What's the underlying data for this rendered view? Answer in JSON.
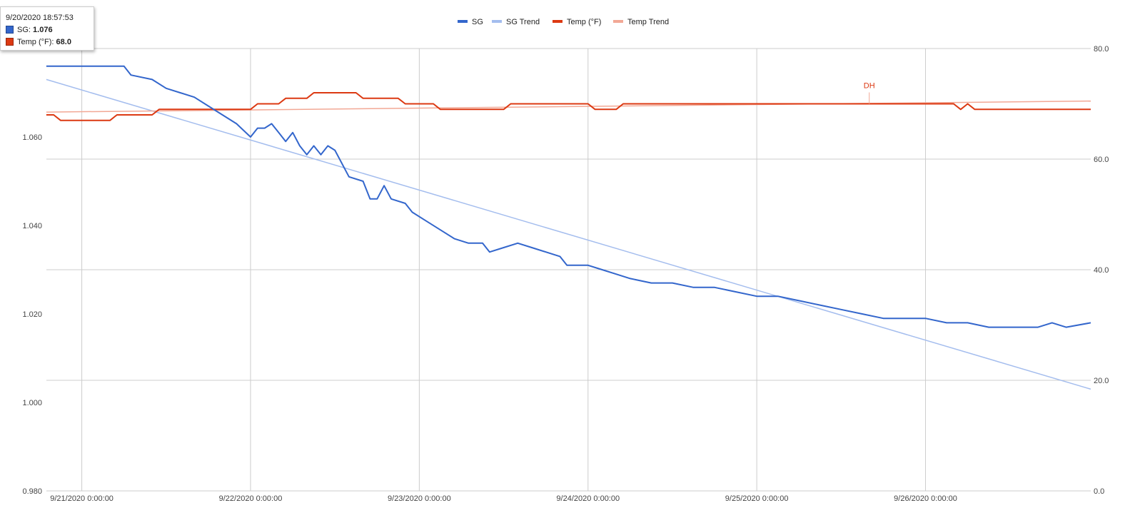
{
  "chart_data": {
    "type": "line",
    "legend": {
      "position": "top",
      "entries": [
        "SG",
        "SG Trend",
        "Temp (°F)",
        "Temp Trend"
      ]
    },
    "colors": {
      "SG": "#3366cc",
      "SG Trend": "#a4bdee",
      "Temp (°F)": "#dc3912",
      "Temp Trend": "#f2a895",
      "grid": "#cccccc"
    },
    "x_axis": {
      "type": "datetime",
      "range": [
        "2020-09-20T18:57:53",
        "2020-09-26T23:30:00"
      ],
      "ticks": [
        {
          "value": "2020-09-21T00:00:00",
          "label": "9/21/2020 0:00:00"
        },
        {
          "value": "2020-09-22T00:00:00",
          "label": "9/22/2020 0:00:00"
        },
        {
          "value": "2020-09-23T00:00:00",
          "label": "9/23/2020 0:00:00"
        },
        {
          "value": "2020-09-24T00:00:00",
          "label": "9/24/2020 0:00:00"
        },
        {
          "value": "2020-09-25T00:00:00",
          "label": "9/25/2020 0:00:00"
        },
        {
          "value": "2020-09-26T00:00:00",
          "label": "9/26/2020 0:00:00"
        }
      ],
      "grid": true
    },
    "y_left": {
      "label": "",
      "range": [
        0.98,
        1.08
      ],
      "ticks": [
        "1.060",
        "1.040",
        "1.020",
        "1.000",
        "0.980"
      ],
      "grid": true
    },
    "y_right": {
      "label": "",
      "range": [
        0,
        80
      ],
      "ticks": [
        "80.0",
        "60.0",
        "40.0",
        "20.0",
        "0.0"
      ]
    },
    "series": [
      {
        "name": "SG",
        "axis": "left",
        "points": [
          [
            "2020-09-20T18:57",
            1.076
          ],
          [
            "2020-09-21T06:00",
            1.076
          ],
          [
            "2020-09-21T07:00",
            1.074
          ],
          [
            "2020-09-21T10:00",
            1.073
          ],
          [
            "2020-09-21T12:00",
            1.071
          ],
          [
            "2020-09-21T14:00",
            1.07
          ],
          [
            "2020-09-21T16:00",
            1.069
          ],
          [
            "2020-09-21T18:00",
            1.067
          ],
          [
            "2020-09-21T20:00",
            1.065
          ],
          [
            "2020-09-21T22:00",
            1.063
          ],
          [
            "2020-09-22T00:00",
            1.06
          ],
          [
            "2020-09-22T01:00",
            1.062
          ],
          [
            "2020-09-22T02:00",
            1.062
          ],
          [
            "2020-09-22T03:00",
            1.063
          ],
          [
            "2020-09-22T04:00",
            1.061
          ],
          [
            "2020-09-22T05:00",
            1.059
          ],
          [
            "2020-09-22T06:00",
            1.061
          ],
          [
            "2020-09-22T07:00",
            1.058
          ],
          [
            "2020-09-22T08:00",
            1.056
          ],
          [
            "2020-09-22T09:00",
            1.058
          ],
          [
            "2020-09-22T10:00",
            1.056
          ],
          [
            "2020-09-22T11:00",
            1.058
          ],
          [
            "2020-09-22T12:00",
            1.057
          ],
          [
            "2020-09-22T14:00",
            1.051
          ],
          [
            "2020-09-22T16:00",
            1.05
          ],
          [
            "2020-09-22T17:00",
            1.046
          ],
          [
            "2020-09-22T18:00",
            1.046
          ],
          [
            "2020-09-22T19:00",
            1.049
          ],
          [
            "2020-09-22T20:00",
            1.046
          ],
          [
            "2020-09-22T22:00",
            1.045
          ],
          [
            "2020-09-22T23:00",
            1.043
          ],
          [
            "2020-09-23T01:00",
            1.041
          ],
          [
            "2020-09-23T03:00",
            1.039
          ],
          [
            "2020-09-23T05:00",
            1.037
          ],
          [
            "2020-09-23T07:00",
            1.036
          ],
          [
            "2020-09-23T09:00",
            1.036
          ],
          [
            "2020-09-23T10:00",
            1.034
          ],
          [
            "2020-09-23T12:00",
            1.035
          ],
          [
            "2020-09-23T14:00",
            1.036
          ],
          [
            "2020-09-23T16:00",
            1.035
          ],
          [
            "2020-09-23T18:00",
            1.034
          ],
          [
            "2020-09-23T20:00",
            1.033
          ],
          [
            "2020-09-23T21:00",
            1.031
          ],
          [
            "2020-09-24T00:00",
            1.031
          ],
          [
            "2020-09-24T02:00",
            1.03
          ],
          [
            "2020-09-24T04:00",
            1.029
          ],
          [
            "2020-09-24T06:00",
            1.028
          ],
          [
            "2020-09-24T09:00",
            1.027
          ],
          [
            "2020-09-24T12:00",
            1.027
          ],
          [
            "2020-09-24T15:00",
            1.026
          ],
          [
            "2020-09-24T18:00",
            1.026
          ],
          [
            "2020-09-24T21:00",
            1.025
          ],
          [
            "2020-09-25T00:00",
            1.024
          ],
          [
            "2020-09-25T03:00",
            1.024
          ],
          [
            "2020-09-25T06:00",
            1.023
          ],
          [
            "2020-09-25T09:00",
            1.022
          ],
          [
            "2020-09-25T12:00",
            1.021
          ],
          [
            "2020-09-25T15:00",
            1.02
          ],
          [
            "2020-09-25T18:00",
            1.019
          ],
          [
            "2020-09-26T00:00",
            1.019
          ],
          [
            "2020-09-26T03:00",
            1.018
          ],
          [
            "2020-09-26T06:00",
            1.018
          ],
          [
            "2020-09-26T09:00",
            1.017
          ],
          [
            "2020-09-26T13:00",
            1.017
          ],
          [
            "2020-09-26T16:00",
            1.017
          ],
          [
            "2020-09-26T18:00",
            1.018
          ],
          [
            "2020-09-26T20:00",
            1.017
          ],
          [
            "2020-09-26T23:30",
            1.018
          ]
        ]
      },
      {
        "name": "SG Trend",
        "axis": "left",
        "points": [
          [
            "2020-09-20T18:57",
            1.073
          ],
          [
            "2020-09-26T23:30",
            1.003
          ]
        ]
      },
      {
        "name": "Temp (°F)",
        "axis": "right",
        "points": [
          [
            "2020-09-20T18:57",
            68.0
          ],
          [
            "2020-09-20T20:00",
            68.0
          ],
          [
            "2020-09-20T21:00",
            67.0
          ],
          [
            "2020-09-21T04:00",
            67.0
          ],
          [
            "2020-09-21T05:00",
            68.0
          ],
          [
            "2020-09-21T10:00",
            68.0
          ],
          [
            "2020-09-21T11:00",
            69.0
          ],
          [
            "2020-09-22T00:00",
            69.0
          ],
          [
            "2020-09-22T01:00",
            70.0
          ],
          [
            "2020-09-22T04:00",
            70.0
          ],
          [
            "2020-09-22T05:00",
            71.0
          ],
          [
            "2020-09-22T08:00",
            71.0
          ],
          [
            "2020-09-22T09:00",
            72.0
          ],
          [
            "2020-09-22T15:00",
            72.0
          ],
          [
            "2020-09-22T16:00",
            71.0
          ],
          [
            "2020-09-22T21:00",
            71.0
          ],
          [
            "2020-09-22T22:00",
            70.0
          ],
          [
            "2020-09-23T02:00",
            70.0
          ],
          [
            "2020-09-23T03:00",
            69.0
          ],
          [
            "2020-09-23T12:00",
            69.0
          ],
          [
            "2020-09-23T13:00",
            70.0
          ],
          [
            "2020-09-24T00:00",
            70.0
          ],
          [
            "2020-09-24T01:00",
            69.0
          ],
          [
            "2020-09-24T04:00",
            69.0
          ],
          [
            "2020-09-24T05:00",
            70.0
          ],
          [
            "2020-09-26T04:00",
            70.0
          ],
          [
            "2020-09-26T05:00",
            69.0
          ],
          [
            "2020-09-26T06:00",
            70.0
          ],
          [
            "2020-09-26T07:00",
            69.0
          ],
          [
            "2020-09-26T23:30",
            69.0
          ]
        ]
      },
      {
        "name": "Temp Trend",
        "axis": "right",
        "points": [
          [
            "2020-09-20T18:57",
            68.5
          ],
          [
            "2020-09-26T23:30",
            70.5
          ]
        ]
      }
    ],
    "annotations": [
      {
        "series": "Temp (°F)",
        "x": "2020-09-25T16:00",
        "text": "DH"
      }
    ]
  },
  "tooltip": {
    "title": "9/20/2020 18:57:53",
    "rows": [
      {
        "label": "SG",
        "value": "1.076",
        "color": "#3366cc"
      },
      {
        "label": "Temp (°F)",
        "value": "68.0",
        "color": "#dc3912"
      }
    ]
  }
}
